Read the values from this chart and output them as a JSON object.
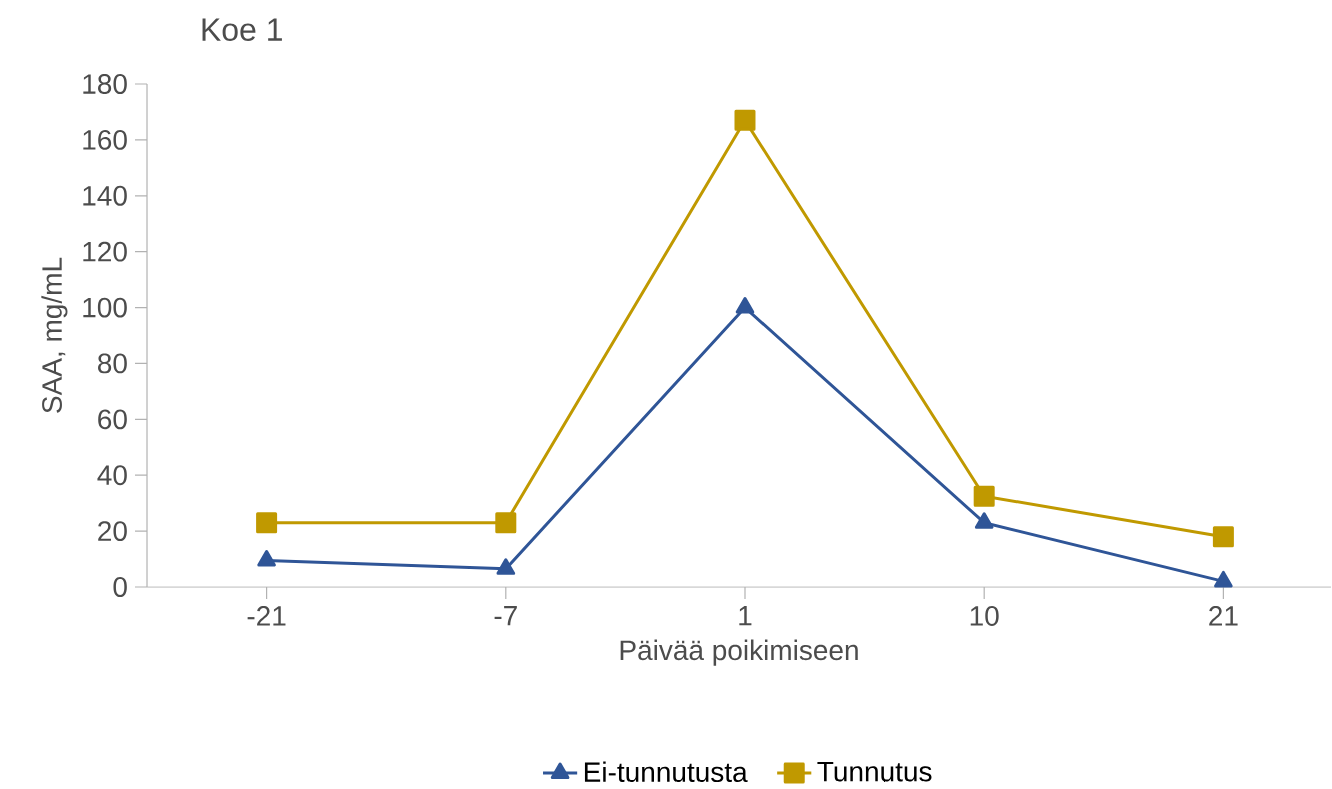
{
  "chart_data": {
    "type": "line",
    "title": "Koe 1",
    "xlabel": "Päivää poikimiseen",
    "ylabel": "SAA, mg/mL",
    "categories": [
      "-21",
      "-7",
      "1",
      "10",
      "21"
    ],
    "series": [
      {
        "name": "Ei-tunnutusta",
        "color": "#2f5597",
        "marker": "triangle",
        "values": [
          9.5,
          6.5,
          100,
          23,
          2
        ]
      },
      {
        "name": "Tunnutus",
        "color": "#c09900",
        "marker": "square",
        "values": [
          23,
          23,
          167,
          32.5,
          18
        ]
      }
    ],
    "ylim": [
      0,
      180
    ],
    "yticks": [
      0,
      20,
      40,
      60,
      80,
      100,
      120,
      140,
      160,
      180
    ],
    "grid": false,
    "legend": "bottom"
  }
}
